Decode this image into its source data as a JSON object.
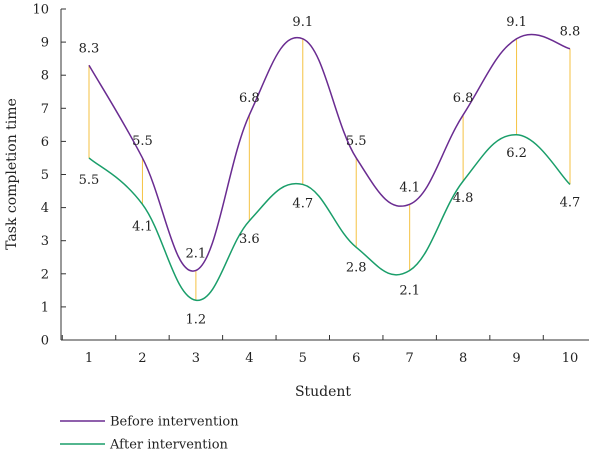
{
  "chart_data": {
    "type": "line",
    "title": "",
    "xlabel": "Student",
    "ylabel": "Task completion time",
    "x": [
      1,
      2,
      3,
      4,
      5,
      6,
      7,
      8,
      9,
      10
    ],
    "ylim": [
      0,
      10
    ],
    "yticks": [
      0,
      1,
      2,
      3,
      4,
      5,
      6,
      7,
      8,
      9,
      10
    ],
    "grid": false,
    "legend_placement": "bottom-left",
    "series": [
      {
        "name": "Before intervention",
        "color": "#6a2c91",
        "values": [
          8.3,
          5.5,
          2.1,
          6.8,
          9.1,
          5.5,
          4.1,
          6.8,
          9.1,
          8.8
        ],
        "labels": [
          "8.3",
          "5.5",
          "2.1",
          "6.8",
          "9.1",
          "5.5",
          "4.1",
          "6.8",
          "9.1",
          "8.8"
        ]
      },
      {
        "name": "After intervention",
        "color": "#1a9e6a",
        "values": [
          5.5,
          4.1,
          1.2,
          3.6,
          4.7,
          2.8,
          2.1,
          4.8,
          6.2,
          4.7
        ],
        "labels": [
          "5.5",
          "4.1",
          "1.2",
          "3.6",
          "4.7",
          "2.8",
          "2.1",
          "4.8",
          "6.2",
          "4.7"
        ]
      }
    ],
    "connector_color": "#f5c242"
  }
}
